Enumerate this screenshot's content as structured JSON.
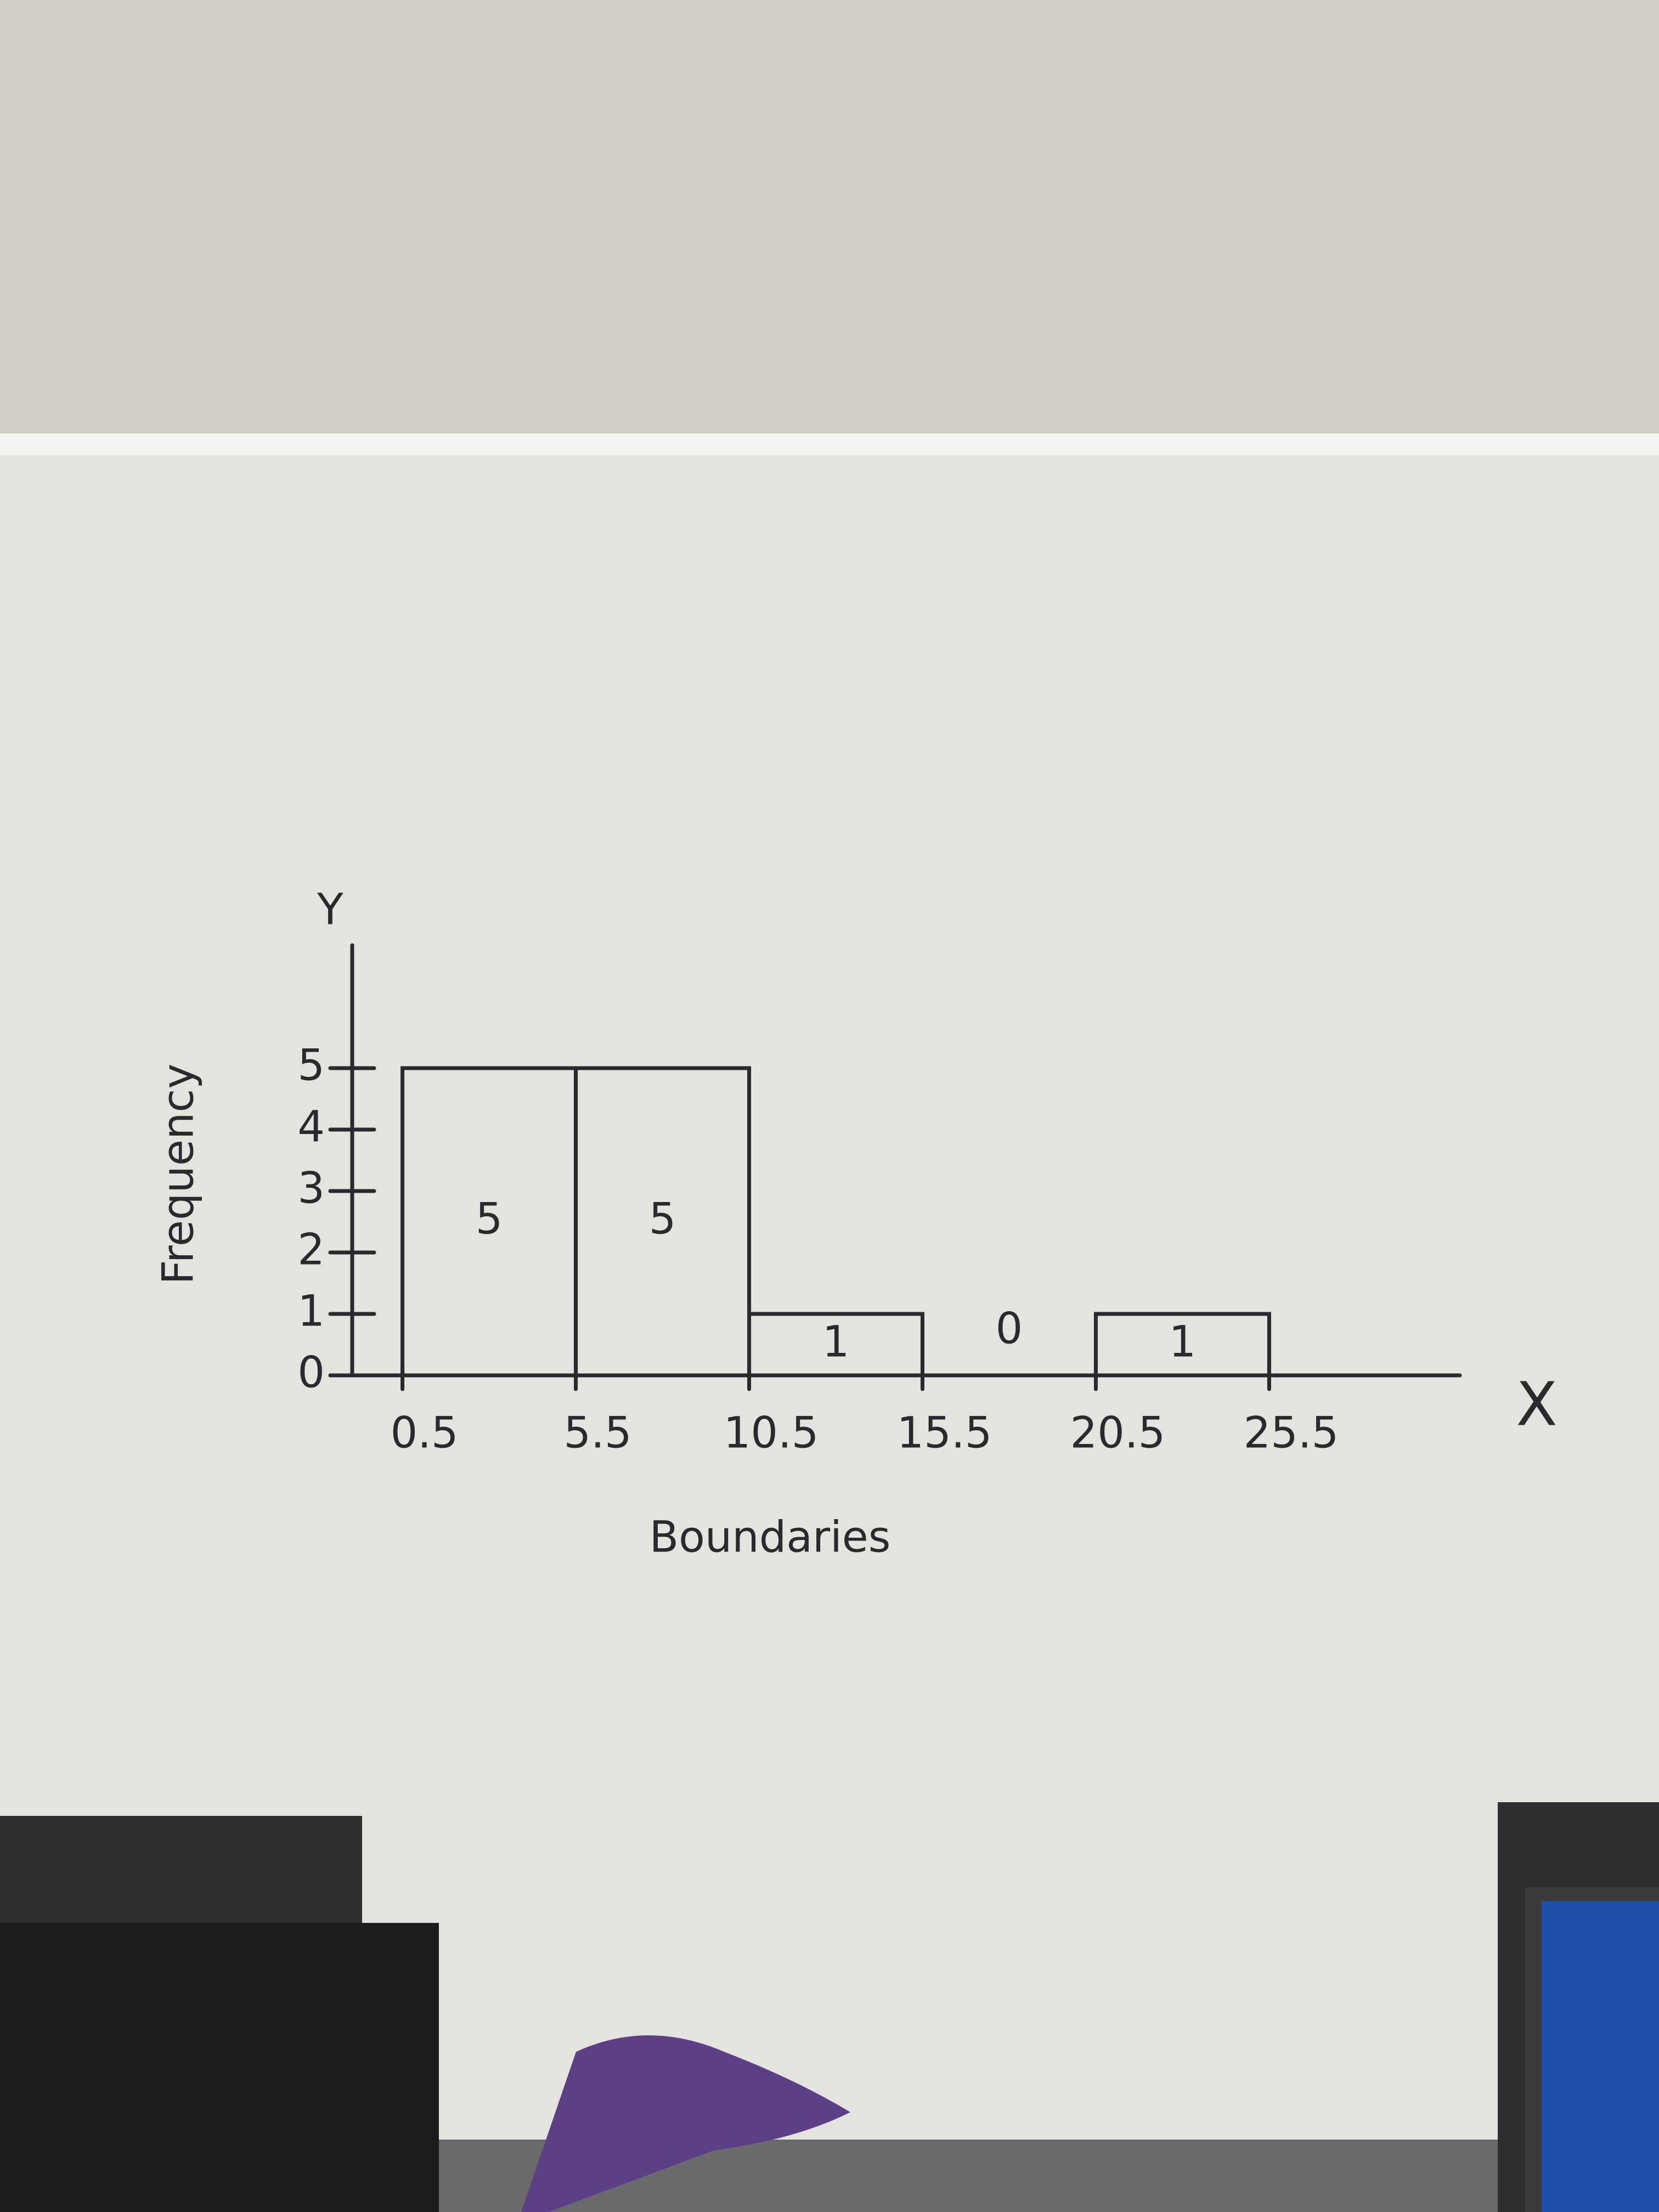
{
  "chart_data": {
    "type": "histogram",
    "ylabel": "Frequency",
    "xlabel": "Boundaries",
    "y_axis_name": "Y",
    "x_axis_name": "X",
    "bins": [
      0.5,
      5.5,
      10.5,
      15.5,
      20.5,
      25.5
    ],
    "values": [
      5,
      5,
      1,
      0,
      1
    ],
    "xlim": [
      0,
      31
    ],
    "ylim": [
      0,
      7
    ],
    "xticks": [
      0.5,
      5.5,
      10.5,
      15.5,
      20.5,
      25.5
    ],
    "yticks": [
      0,
      1,
      2,
      3,
      4,
      5
    ],
    "color": "#2a2a2e"
  }
}
